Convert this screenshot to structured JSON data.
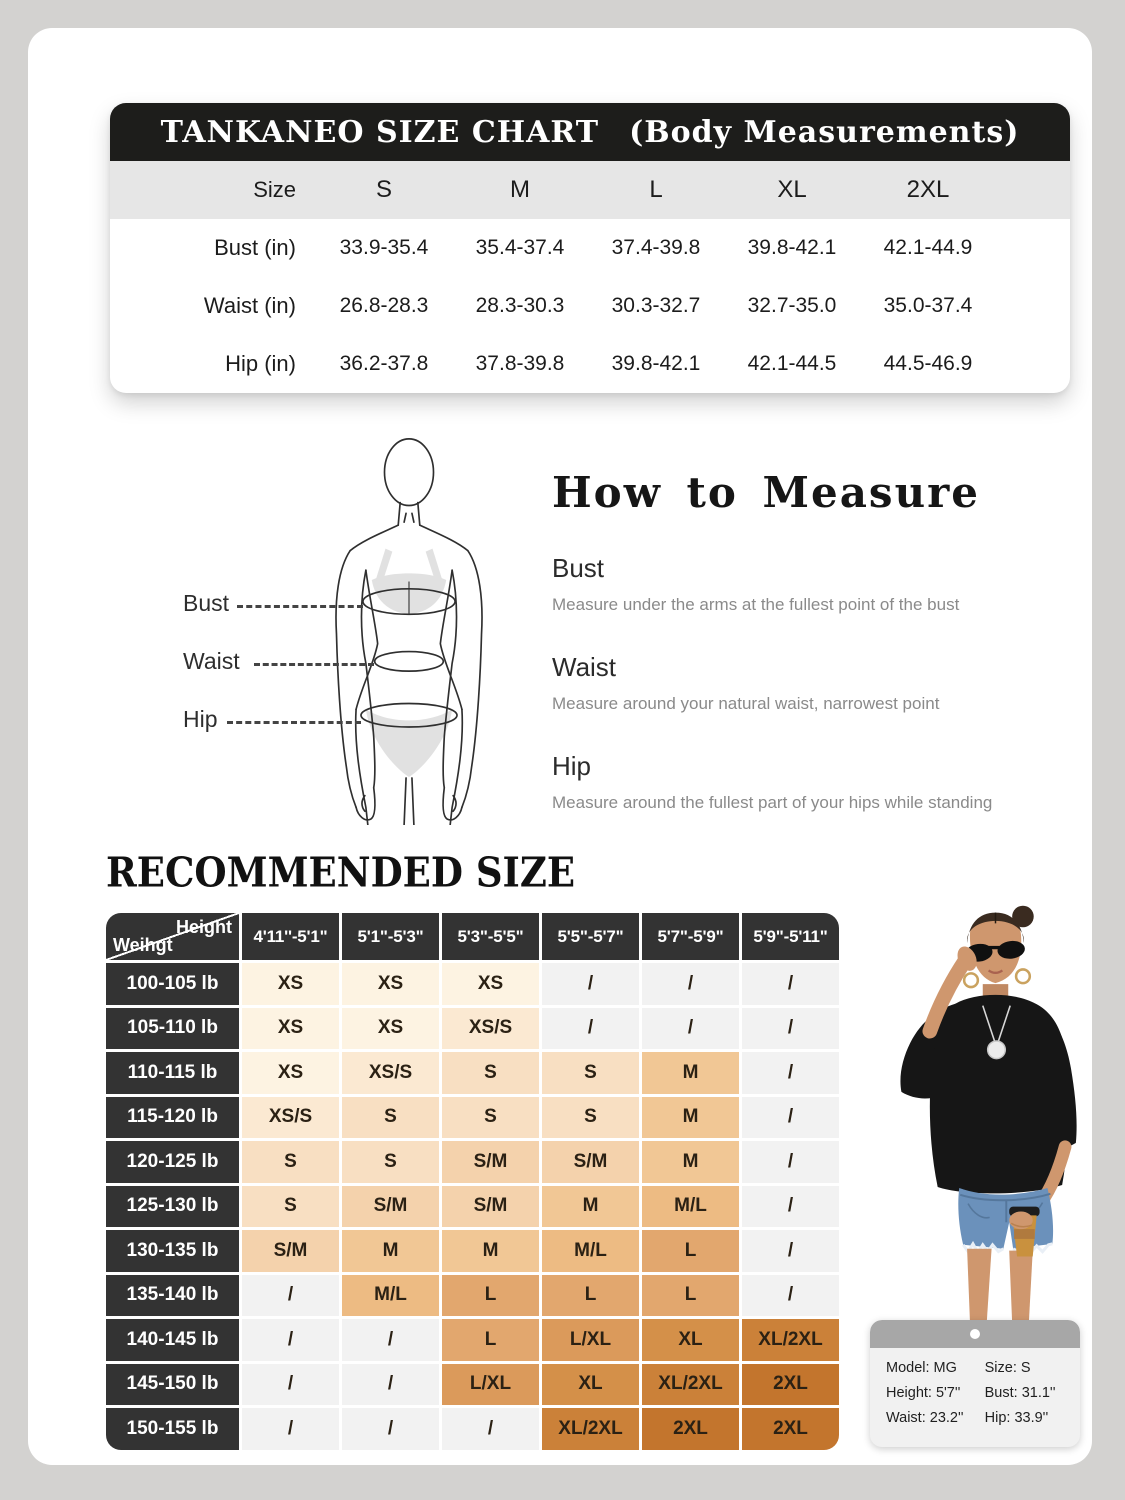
{
  "size_chart": {
    "title": "TANKANEO SIZE CHART",
    "subtitle": "(Body Measurements)",
    "columns": [
      "Size",
      "S",
      "M",
      "L",
      "XL",
      "2XL"
    ],
    "rows": [
      {
        "label": "Bust (in)",
        "values": [
          "33.9-35.4",
          "35.4-37.4",
          "37.4-39.8",
          "39.8-42.1",
          "42.1-44.9"
        ]
      },
      {
        "label": "Waist (in)",
        "values": [
          "26.8-28.3",
          "28.3-30.3",
          "30.3-32.7",
          "32.7-35.0",
          "35.0-37.4"
        ]
      },
      {
        "label": "Hip (in)",
        "values": [
          "36.2-37.8",
          "37.8-39.8",
          "39.8-42.1",
          "42.1-44.5",
          "44.5-46.9"
        ]
      }
    ]
  },
  "how_to_measure": {
    "title": "How to Measure",
    "figure_labels": [
      "Bust",
      "Waist",
      "Hip"
    ],
    "sections": [
      {
        "label": "Bust",
        "description": "Measure under the arms at the fullest point of the bust"
      },
      {
        "label": "Waist",
        "description": "Measure around your natural waist, narrowest point"
      },
      {
        "label": "Hip",
        "description": "Measure around the fullest part of your hips while standing"
      }
    ]
  },
  "recommended": {
    "title": "RECOMMENDED SIZE",
    "corner": {
      "top": "Height",
      "bottom": "Weihgt"
    },
    "height_columns": [
      "4'11''-5'1\"",
      "5'1\"-5'3\"",
      "5'3\"-5'5\"",
      "5'5\"-5'7\"",
      "5'7\"-5'9\"",
      "5'9\"-5'11\""
    ],
    "rows": [
      {
        "weight": "100-105 lb",
        "sizes": [
          "XS",
          "XS",
          "XS",
          "/",
          "/",
          "/"
        ]
      },
      {
        "weight": "105-110 lb",
        "sizes": [
          "XS",
          "XS",
          "XS/S",
          "/",
          "/",
          "/"
        ]
      },
      {
        "weight": "110-115 lb",
        "sizes": [
          "XS",
          "XS/S",
          "S",
          "S",
          "M",
          "/"
        ]
      },
      {
        "weight": "115-120 lb",
        "sizes": [
          "XS/S",
          "S",
          "S",
          "S",
          "M",
          "/"
        ]
      },
      {
        "weight": "120-125 lb",
        "sizes": [
          "S",
          "S",
          "S/M",
          "S/M",
          "M",
          "/"
        ]
      },
      {
        "weight": "125-130 lb",
        "sizes": [
          "S",
          "S/M",
          "S/M",
          "M",
          "M/L",
          "/"
        ]
      },
      {
        "weight": "130-135 lb",
        "sizes": [
          "S/M",
          "M",
          "M",
          "M/L",
          "L",
          "/"
        ]
      },
      {
        "weight": "135-140 lb",
        "sizes": [
          "/",
          "M/L",
          "L",
          "L",
          "L",
          "/"
        ]
      },
      {
        "weight": "140-145 lb",
        "sizes": [
          "/",
          "/",
          "L",
          "L/XL",
          "XL",
          "XL/2XL"
        ]
      },
      {
        "weight": "145-150 lb",
        "sizes": [
          "/",
          "/",
          "L/XL",
          "XL",
          "XL/2XL",
          "2XL"
        ]
      },
      {
        "weight": "150-155 lb",
        "sizes": [
          "/",
          "/",
          "/",
          "XL/2XL",
          "2XL",
          "2XL"
        ]
      }
    ],
    "size_colors": {
      "XS": "#fdf3e2",
      "XS/S": "#fbe9d2",
      "S": "#f8dfc2",
      "S/M": "#f4d2ac",
      "M": "#f1c795",
      "M/L": "#edbb83",
      "L": "#e2a76e",
      "L/XL": "#db9a5b",
      "XL": "#d49049",
      "XL/2XL": "#cb8139",
      "2XL": "#c3752d",
      "/": "#f2f2f2"
    }
  },
  "model_card": {
    "rows": [
      [
        "Model: MG",
        "Size: S"
      ],
      [
        "Height: 5'7''",
        "Bust: 31.1''"
      ],
      [
        "Waist: 23.2''",
        "Hip: 33.9''"
      ]
    ]
  },
  "palette": {
    "page_background": "#d3d2d0",
    "card_background": "#ffffff",
    "size_chart_header": "#1d1d1b",
    "size_row_background": "#e6e6e6",
    "table_dark_cell": "#333333",
    "denim": "#6b91bb",
    "skin": "#cf976e",
    "cup": "#c9913e"
  }
}
